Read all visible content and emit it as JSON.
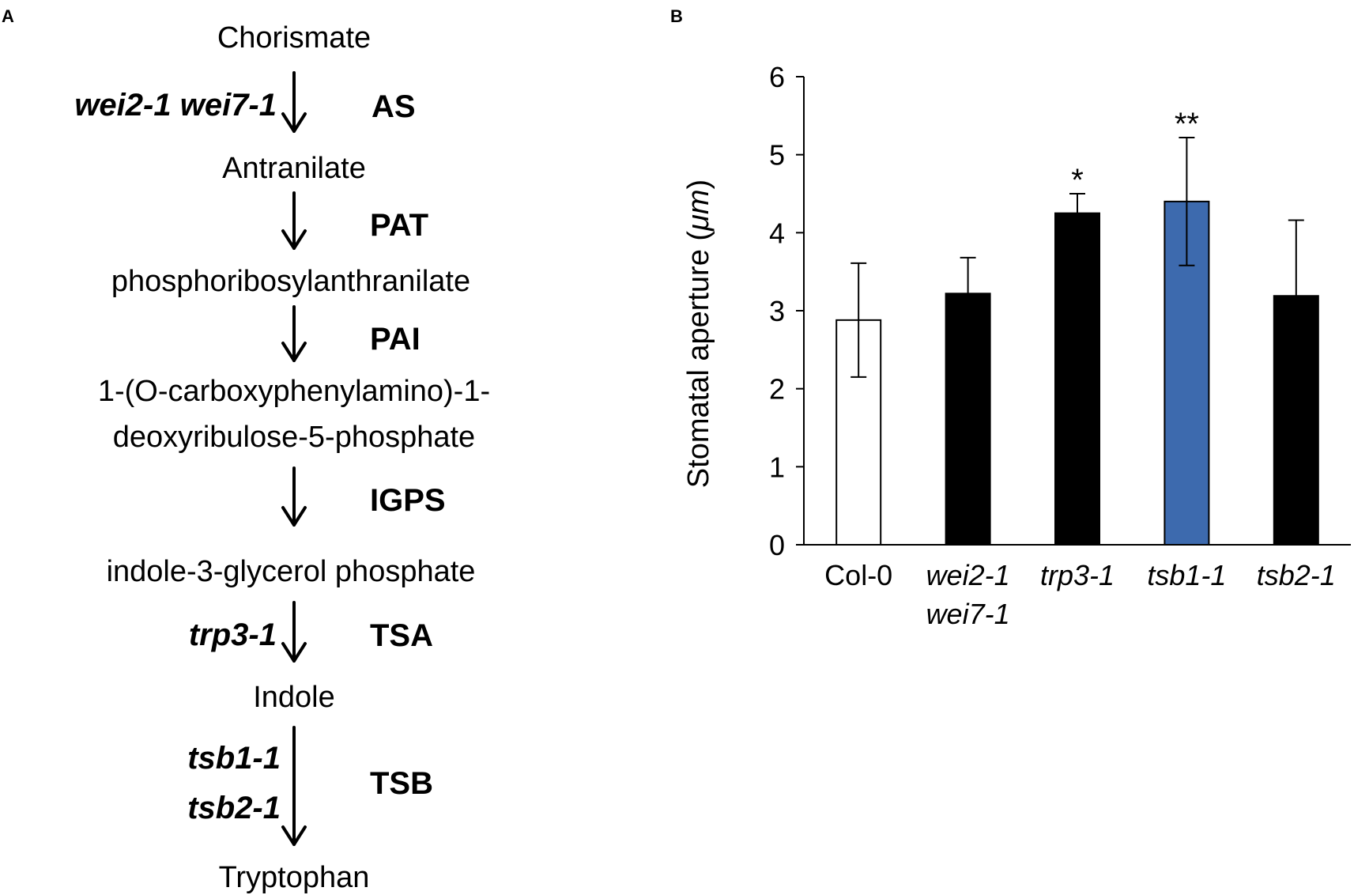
{
  "panels": {
    "a": "A",
    "b": "B"
  },
  "pathway": {
    "compounds": [
      "Chorismate",
      "Antranilate",
      "phosphoribosylanthranilate",
      "1-(O-carboxyphenylamino)-1-",
      "deoxyribulose-5-phosphate",
      "indole-3-glycerol phosphate",
      "Indole",
      "Tryptophan"
    ],
    "enzymes": [
      "AS",
      "PAT",
      "PAI",
      "IGPS",
      "TSA",
      "TSB"
    ],
    "mutants": {
      "as": "wei2-1 wei7-1",
      "tsa": "trp3-1",
      "tsb_1": "tsb1-1",
      "tsb_2": "tsb2-1"
    }
  },
  "chart_data": {
    "type": "bar",
    "ylabel_prefix": "Stomatal aperture (",
    "ylabel_unit": "μm",
    "ylabel_suffix": ")",
    "ylim": [
      0,
      6
    ],
    "yticks": [
      "0",
      "1",
      "2",
      "3",
      "4",
      "5",
      "6"
    ],
    "grid": false,
    "categories": [
      {
        "line1": "Col-0",
        "line2": "",
        "italic": false
      },
      {
        "line1": "wei2-1",
        "line2": "wei7-1",
        "italic": true
      },
      {
        "line1": "trp3-1",
        "line2": "",
        "italic": true
      },
      {
        "line1": "tsb1-1",
        "line2": "",
        "italic": true
      },
      {
        "line1": "tsb2-1",
        "line2": "",
        "italic": true
      }
    ],
    "values": [
      2.88,
      3.22,
      4.25,
      4.4,
      3.19
    ],
    "errors": [
      0.73,
      0.46,
      0.25,
      0.82,
      0.97
    ],
    "colors": [
      "#ffffff",
      "#000000",
      "#000000",
      "#3d6aae",
      "#000000"
    ],
    "significance": [
      "",
      "",
      "*",
      "**",
      ""
    ]
  }
}
